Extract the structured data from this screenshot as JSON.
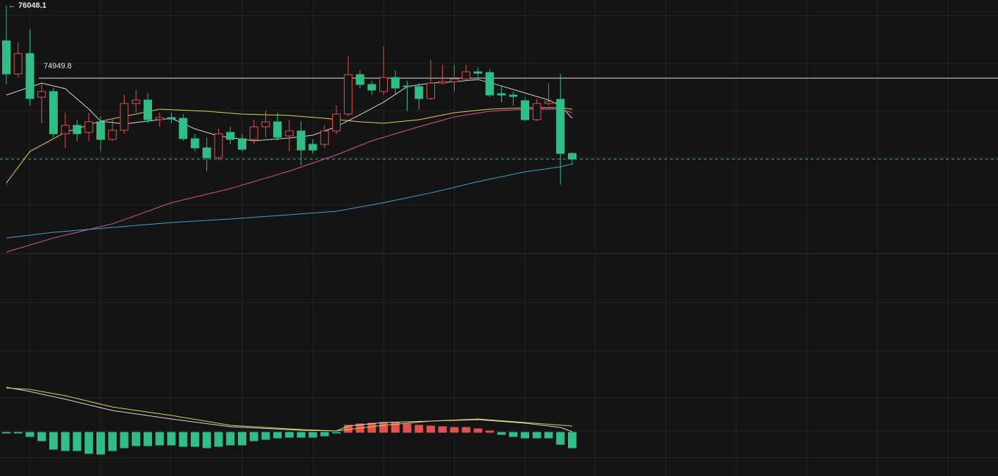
{
  "chart_data": [
    {
      "type": "candlestick",
      "up_color": "#e0524f",
      "down_color": "#2ebd85",
      "ylim": [
        68927,
        76133
      ],
      "high_marker": {
        "value": 76048.1,
        "label": "← 76048.1"
      },
      "price_line": 74949.8,
      "price_line_color": "#e6e6e6",
      "last_price": 73724,
      "last_price_color": "#2ebd85",
      "open": [
        75515,
        75014,
        75323,
        74662,
        74747,
        74108,
        74236,
        74129,
        74289,
        74022,
        74161,
        74566,
        74619,
        74321,
        74353,
        74342,
        74033,
        73894,
        73745,
        74129,
        74033,
        74022,
        74214,
        74289,
        74076,
        74150,
        73948,
        73948,
        74150,
        74406,
        75003,
        74854,
        74747,
        74960,
        74832,
        74822,
        74641,
        74875,
        74896,
        74939,
        75046,
        75035,
        74715,
        74694,
        74609,
        74321,
        74566,
        74630,
        73809
      ],
      "high": [
        76048,
        75493,
        75685,
        74875,
        74800,
        74427,
        74321,
        74427,
        74374,
        74321,
        74694,
        74779,
        74726,
        74427,
        74427,
        74406,
        74108,
        74054,
        74182,
        74214,
        74108,
        74321,
        74459,
        74427,
        74321,
        74299,
        74022,
        74236,
        74534,
        75280,
        75067,
        74907,
        75429,
        75067,
        74907,
        74875,
        75227,
        75152,
        75152,
        75152,
        75110,
        75088,
        74832,
        74747,
        74662,
        74641,
        74875,
        75014,
        73830
      ],
      "low": [
        74854,
        74960,
        74534,
        74267,
        74054,
        73894,
        74001,
        74001,
        73841,
        74001,
        74108,
        74427,
        74267,
        74214,
        74267,
        74001,
        73841,
        73543,
        73703,
        73948,
        73841,
        73948,
        74054,
        74001,
        73841,
        73628,
        73809,
        73894,
        74108,
        74374,
        74800,
        74694,
        74694,
        74694,
        74449,
        74481,
        74619,
        74854,
        74747,
        74907,
        74960,
        74662,
        74587,
        74534,
        74299,
        74299,
        74534,
        73340,
        73639
      ],
      "close": [
        75014,
        75323,
        74641,
        74747,
        74108,
        74236,
        74108,
        74289,
        74022,
        74161,
        74566,
        74619,
        74321,
        74353,
        74331,
        74033,
        73894,
        73745,
        74108,
        74022,
        73873,
        74214,
        74289,
        74054,
        74150,
        73862,
        73862,
        74150,
        74406,
        75003,
        74854,
        74769,
        74960,
        74800,
        74822,
        74641,
        74875,
        74896,
        74939,
        75046,
        75024,
        74694,
        74694,
        74673,
        74321,
        74566,
        74598,
        73809,
        73724
      ],
      "series": [
        {
          "color": "#d9d9d9",
          "x": [
            0,
            3,
            5,
            7,
            8,
            10,
            12,
            14,
            16,
            18,
            21,
            24,
            26,
            28,
            30,
            32,
            34,
            36,
            38,
            40,
            42,
            44,
            46,
            47,
            48
          ],
          "values": [
            74694,
            74875,
            74790,
            74481,
            74299,
            74257,
            74299,
            74342,
            74182,
            74076,
            74001,
            74044,
            74086,
            74214,
            74396,
            74587,
            74822,
            74875,
            74896,
            74929,
            74832,
            74726,
            74619,
            74534,
            74342
          ]
        },
        {
          "color": "#e6d34a",
          "x": [
            0,
            2,
            5,
            8,
            11,
            13,
            17,
            20,
            24,
            27,
            30,
            32,
            35,
            38,
            41,
            44,
            47,
            48
          ],
          "values": [
            73362,
            73841,
            74129,
            74299,
            74406,
            74481,
            74449,
            74406,
            74385,
            74342,
            74289,
            74267,
            74321,
            74427,
            74481,
            74502,
            74502,
            74481
          ]
        },
        {
          "color": "#e0509c",
          "x": [
            0,
            4,
            9,
            14,
            19,
            24,
            28,
            31,
            35,
            38,
            41,
            44,
            47,
            48
          ],
          "values": [
            72317,
            72530,
            72744,
            73064,
            73277,
            73543,
            73788,
            74001,
            74214,
            74364,
            74449,
            74481,
            74481,
            74427
          ]
        },
        {
          "color": "#3aa6d8",
          "x": [
            0,
            4,
            9,
            14,
            19,
            24,
            28,
            32,
            36,
            40,
            44,
            47,
            48
          ],
          "values": [
            72530,
            72616,
            72690,
            72765,
            72818,
            72882,
            72935,
            73064,
            73213,
            73383,
            73532,
            73607,
            73650
          ]
        }
      ]
    },
    {
      "type": "macd",
      "up_color": "#e0524f",
      "down_color": "#2ebd85",
      "ylim": [
        -62,
        74
      ],
      "values": [
        -1,
        -1,
        -6,
        -12,
        -24,
        -26,
        -26,
        -30,
        -31,
        -26,
        -22,
        -19,
        -19,
        -18,
        -18,
        -20,
        -20,
        -22,
        -20,
        -18,
        -18,
        -12,
        -10,
        -8,
        -7,
        -7,
        -7,
        -5,
        -1,
        10,
        12,
        13,
        14,
        14,
        12,
        10,
        9,
        8,
        7,
        7,
        5,
        2,
        -3,
        -6,
        -8,
        -8,
        -8,
        -17,
        -22
      ],
      "series": [
        {
          "color": "#d9d9d9",
          "x": [
            0,
            2,
            5,
            9,
            14,
            19,
            25,
            28,
            29,
            32,
            36,
            40,
            44,
            47,
            48
          ],
          "values": [
            64,
            58,
            47,
            31,
            19,
            8,
            3,
            2,
            9,
            14,
            16,
            18,
            13,
            7,
            1
          ]
        },
        {
          "color": "#e6d34a",
          "x": [
            0,
            2,
            5,
            9,
            14,
            19,
            25,
            28,
            32,
            36,
            40,
            44,
            48
          ],
          "values": [
            63,
            61,
            52,
            36,
            24,
            10,
            4,
            2,
            10,
            16,
            19,
            14,
            9
          ]
        }
      ]
    }
  ]
}
